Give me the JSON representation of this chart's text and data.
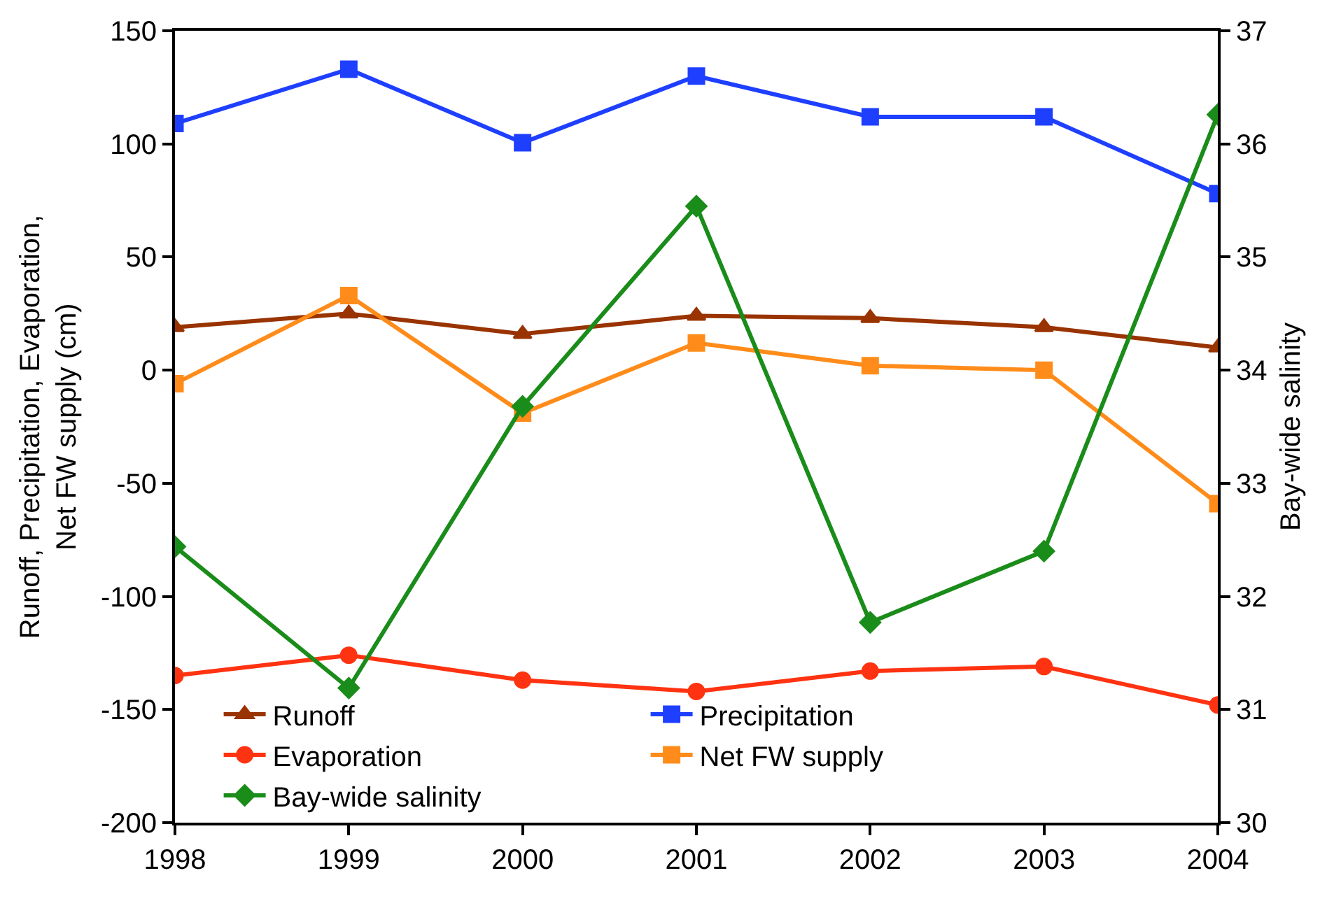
{
  "chart_data": {
    "type": "line",
    "x": [
      1998,
      1999,
      2000,
      2001,
      2002,
      2003,
      2004
    ],
    "xlim": [
      1998,
      2004
    ],
    "xticks": [
      1998,
      1999,
      2000,
      2001,
      2002,
      2003,
      2004
    ],
    "ylim": [
      -200,
      150
    ],
    "yticks": [
      -200,
      -150,
      -100,
      -50,
      0,
      50,
      100,
      150
    ],
    "y2lim": [
      30,
      37
    ],
    "y2ticks": [
      30,
      31,
      32,
      33,
      34,
      35,
      36,
      37
    ],
    "ylabel": "Runoff, Precipitation, Evaporation,\nNet FW supply (cm)",
    "y2label": "Bay-wide salinity",
    "legend": "bottom left",
    "series": [
      {
        "name": "Runoff",
        "color": "#993300",
        "marker": "triangle",
        "values": [
          19,
          25,
          16,
          24,
          23,
          19,
          10
        ]
      },
      {
        "name": "Precipitation",
        "color": "#1f3fff",
        "marker": "square",
        "values": [
          109,
          133,
          100.5,
          130,
          112,
          112,
          78
        ]
      },
      {
        "name": "Evaporation",
        "color": "#ff3311",
        "marker": "circle",
        "values": [
          -135,
          -126,
          -137,
          -142,
          -133,
          -131,
          -148
        ]
      },
      {
        "name": "Net FW supply",
        "color": "#ff8c1a",
        "marker": "square",
        "values": [
          -6,
          33,
          -19,
          12,
          2,
          0,
          -59
        ]
      },
      {
        "name": "Bay-wide salinity",
        "color": "#1a8c1a",
        "marker": "diamond",
        "axis": "y2",
        "values": [
          32.44,
          31.19,
          33.68,
          35.45,
          31.77,
          32.4,
          36.26
        ]
      }
    ]
  }
}
